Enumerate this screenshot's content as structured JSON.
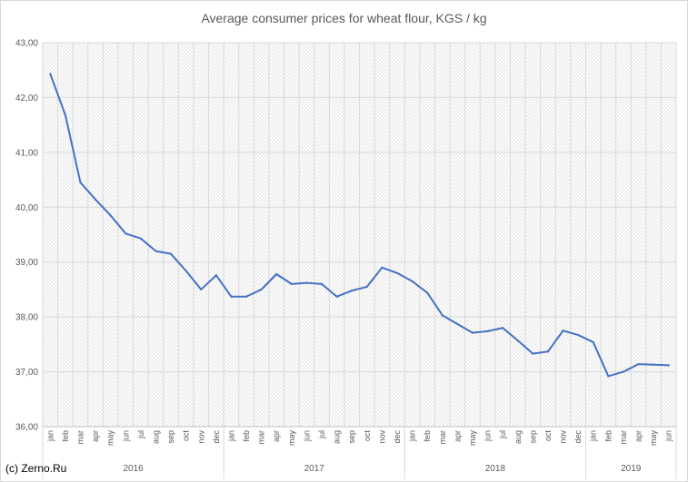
{
  "chart_data": {
    "type": "line",
    "title": "Average consumer prices for wheat flour, KGS / kg",
    "xlabel": "",
    "ylabel": "",
    "ylim": [
      36,
      43
    ],
    "yticks": [
      "36,00",
      "37,00",
      "38,00",
      "39,00",
      "40,00",
      "41,00",
      "42,00",
      "43,00"
    ],
    "grid": true,
    "legend": "none",
    "line_color": "#4472c4",
    "years": [
      {
        "label": "2016",
        "count": 12
      },
      {
        "label": "2017",
        "count": 12
      },
      {
        "label": "2018",
        "count": 12
      },
      {
        "label": "2019",
        "count": 6
      }
    ],
    "categories": [
      "jan",
      "feb",
      "mar",
      "apr",
      "may",
      "jun",
      "jul",
      "aug",
      "sep",
      "oct",
      "nov",
      "dec",
      "jan",
      "feb",
      "mar",
      "apr",
      "may",
      "jun",
      "jul",
      "aug",
      "sep",
      "oct",
      "nov",
      "dec",
      "jan",
      "feb",
      "mar",
      "apr",
      "may",
      "jun",
      "jul",
      "aug",
      "sep",
      "oct",
      "nov",
      "dec",
      "jan",
      "feb",
      "mar",
      "apr",
      "may",
      "jun"
    ],
    "series": [
      {
        "values": [
          42.43,
          41.68,
          40.45,
          40.14,
          39.85,
          39.52,
          39.43,
          39.2,
          39.15,
          38.84,
          38.5,
          38.76,
          38.37,
          38.37,
          38.5,
          38.78,
          38.6,
          38.62,
          38.6,
          38.37,
          38.48,
          38.55,
          38.9,
          38.8,
          38.65,
          38.44,
          38.03,
          37.87,
          37.71,
          37.74,
          37.8,
          37.57,
          37.33,
          37.37,
          37.75,
          37.67,
          37.54,
          36.92,
          37.0,
          37.14,
          37.13,
          37.12
        ]
      }
    ]
  },
  "credit": "(c) Zerno.Ru"
}
